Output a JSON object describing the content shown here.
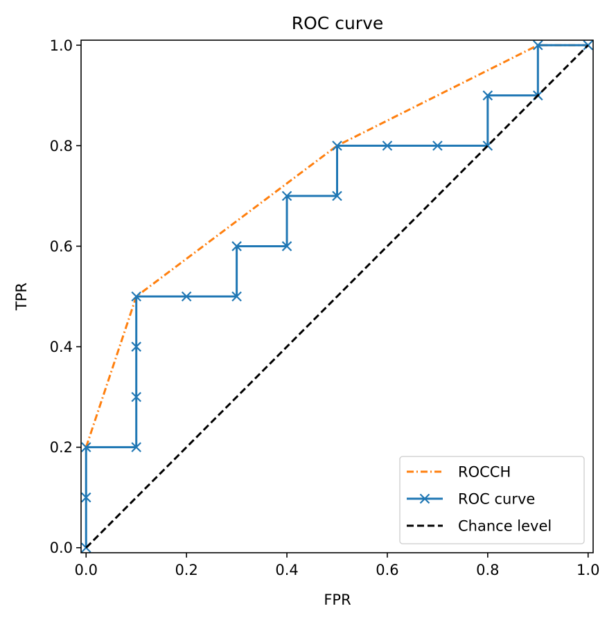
{
  "chart_data": {
    "type": "line",
    "title": "ROC curve",
    "xlabel": "FPR",
    "ylabel": "TPR",
    "xlim": [
      -0.01,
      1.01
    ],
    "ylim": [
      -0.01,
      1.01
    ],
    "xticks": [
      "0.0",
      "0.2",
      "0.4",
      "0.6",
      "0.8",
      "1.0"
    ],
    "yticks": [
      "0.0",
      "0.2",
      "0.4",
      "0.6",
      "0.8",
      "1.0"
    ],
    "grid": false,
    "legend_position": "lower-right",
    "series": [
      {
        "name": "ROCCH",
        "color": "#ff7f0e",
        "style": "dashdot",
        "marker": "none",
        "x": [
          0.0,
          0.1,
          0.5,
          0.9,
          1.0
        ],
        "y": [
          0.2,
          0.5,
          0.8,
          1.0,
          1.0
        ]
      },
      {
        "name": "ROC curve",
        "color": "#1f77b4",
        "style": "solid",
        "marker": "x",
        "x": [
          0.0,
          0.0,
          0.0,
          0.1,
          0.1,
          0.1,
          0.1,
          0.2,
          0.3,
          0.3,
          0.4,
          0.4,
          0.5,
          0.5,
          0.6,
          0.7,
          0.8,
          0.8,
          0.9,
          0.9,
          1.0
        ],
        "y": [
          0.0,
          0.1,
          0.2,
          0.2,
          0.3,
          0.4,
          0.5,
          0.5,
          0.5,
          0.6,
          0.6,
          0.7,
          0.7,
          0.8,
          0.8,
          0.8,
          0.8,
          0.9,
          0.9,
          1.0,
          1.0
        ]
      },
      {
        "name": "Chance level",
        "color": "#000000",
        "style": "dashed",
        "marker": "none",
        "x": [
          0.0,
          1.0
        ],
        "y": [
          0.0,
          1.0
        ]
      }
    ]
  }
}
